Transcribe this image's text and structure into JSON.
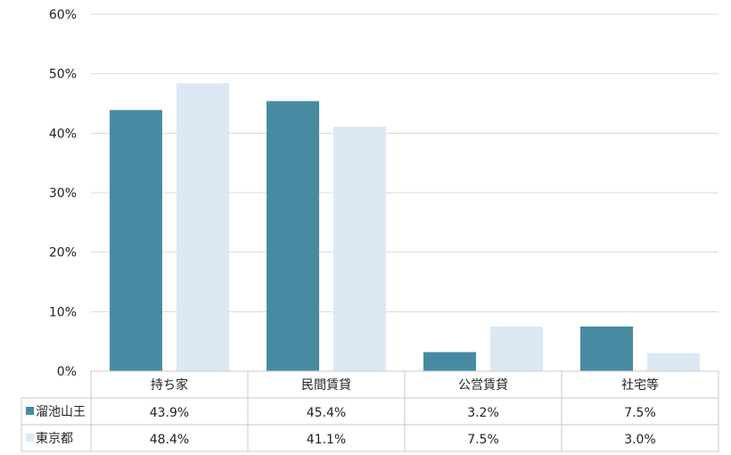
{
  "chart_data": {
    "type": "bar",
    "categories": [
      "持ち家",
      "民間賃貸",
      "公営賃貸",
      "社宅等"
    ],
    "series": [
      {
        "name": "溜池山王",
        "values": [
          43.9,
          45.4,
          3.2,
          7.5
        ],
        "labels": [
          "43.9%",
          "45.4%",
          "3.2%",
          "7.5%"
        ],
        "color": "#478ba3"
      },
      {
        "name": "東京都",
        "values": [
          48.4,
          41.1,
          7.5,
          3.0
        ],
        "labels": [
          "48.4%",
          "41.1%",
          "7.5%",
          "3.0%"
        ],
        "color": "#dce9f5"
      }
    ],
    "ylim": [
      0,
      60
    ],
    "yticks": [
      "0%",
      "10%",
      "20%",
      "30%",
      "40%",
      "50%",
      "60%"
    ],
    "grid": true,
    "legend": "data-table-left"
  }
}
